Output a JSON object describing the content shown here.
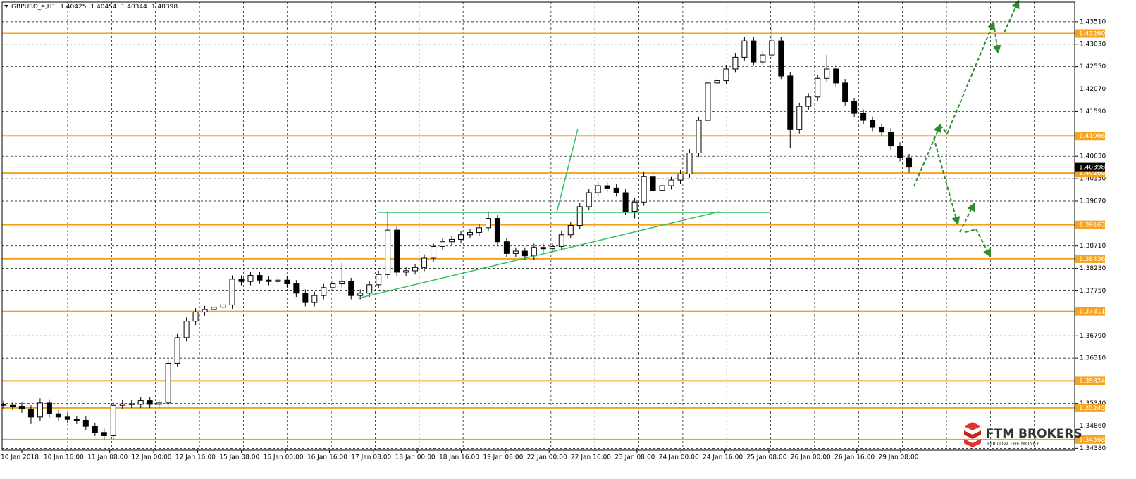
{
  "chart_data": {
    "type": "candlestick",
    "symbol": "GBPUSD_e,H1",
    "header_ohlc": [
      1.40425,
      1.40454,
      1.40344,
      1.40398
    ],
    "ylim": [
      1.3434,
      1.4393
    ],
    "yticks": [
      {
        "value": 1.4351,
        "label": "1.43510"
      },
      {
        "value": 1.4303,
        "label": "1.43030"
      },
      {
        "value": 1.4255,
        "label": "1.42550"
      },
      {
        "value": 1.4207,
        "label": "1.42070"
      },
      {
        "value": 1.4159,
        "label": "1.41590"
      },
      {
        "value": 1.4063,
        "label": "1.40630"
      },
      {
        "value": 1.4015,
        "label": "1.40150"
      },
      {
        "value": 1.3967,
        "label": "1.39670"
      },
      {
        "value": 1.3871,
        "label": "1.38710"
      },
      {
        "value": 1.3823,
        "label": "1.38230"
      },
      {
        "value": 1.3775,
        "label": "1.37750"
      },
      {
        "value": 1.3679,
        "label": "1.36790"
      },
      {
        "value": 1.3631,
        "label": "1.36310"
      },
      {
        "value": 1.3534,
        "label": "1.35340"
      },
      {
        "value": 1.3486,
        "label": "1.34860"
      },
      {
        "value": 1.3438,
        "label": "1.34380"
      }
    ],
    "grid": true,
    "xticks_labels": [
      "10 Jan 2018",
      "10 Jan 16:00",
      "11 Jan 08:00",
      "12 Jan 00:00",
      "12 Jan 16:00",
      "15 Jan 08:00",
      "16 Jan 00:00",
      "16 Jan 16:00",
      "17 Jan 08:00",
      "18 Jan 00:00",
      "18 Jan 16:00",
      "19 Jan 08:00",
      "22 Jan 00:00",
      "22 Jan 16:00",
      "23 Jan 08:00",
      "24 Jan 00:00",
      "24 Jan 16:00",
      "25 Jan 08:00",
      "26 Jan 00:00",
      "26 Jan 16:00",
      "29 Jan 08:00"
    ],
    "levels_color": "#f7a21b",
    "levels": [
      {
        "value": 1.4326,
        "label": "1.43260"
      },
      {
        "value": 1.41066,
        "label": "1.41066"
      },
      {
        "value": 1.40269,
        "label": "1.40269"
      },
      {
        "value": 1.39163,
        "label": "1.39163"
      },
      {
        "value": 1.38436,
        "label": "1.38436"
      },
      {
        "value": 1.37311,
        "label": "1.37311"
      },
      {
        "value": 1.35824,
        "label": "1.35824"
      },
      {
        "value": 1.35245,
        "label": "1.35245"
      },
      {
        "value": 1.34568,
        "label": "1.34568"
      }
    ],
    "current_price": {
      "value": 1.40398,
      "label": "1.40398"
    },
    "candles": [
      [
        1.3532,
        1.354,
        1.3522,
        1.353
      ],
      [
        1.353,
        1.3538,
        1.352,
        1.3528
      ],
      [
        1.3528,
        1.3536,
        1.3514,
        1.3522
      ],
      [
        1.3522,
        1.353,
        1.349,
        1.3505
      ],
      [
        1.3505,
        1.3545,
        1.3497,
        1.3535
      ],
      [
        1.3535,
        1.3543,
        1.3504,
        1.3512
      ],
      [
        1.3512,
        1.352,
        1.3497,
        1.3505
      ],
      [
        1.3505,
        1.3513,
        1.3492,
        1.35
      ],
      [
        1.35,
        1.3508,
        1.349,
        1.3498
      ],
      [
        1.3498,
        1.3506,
        1.3477,
        1.3485
      ],
      [
        1.3485,
        1.3493,
        1.3464,
        1.3472
      ],
      [
        1.3472,
        1.348,
        1.3455,
        1.3465
      ],
      [
        1.3465,
        1.3538,
        1.3457,
        1.353
      ],
      [
        1.353,
        1.3541,
        1.3522,
        1.3533
      ],
      [
        1.3533,
        1.3541,
        1.3524,
        1.3532
      ],
      [
        1.3532,
        1.3548,
        1.3524,
        1.354
      ],
      [
        1.354,
        1.3548,
        1.3524,
        1.3532
      ],
      [
        1.3532,
        1.3543,
        1.3524,
        1.3535
      ],
      [
        1.3535,
        1.3628,
        1.3527,
        1.362
      ],
      [
        1.362,
        1.3683,
        1.3612,
        1.3675
      ],
      [
        1.3675,
        1.3718,
        1.3667,
        1.371
      ],
      [
        1.371,
        1.3738,
        1.3702,
        1.373
      ],
      [
        1.373,
        1.3743,
        1.3722,
        1.3735
      ],
      [
        1.3735,
        1.3748,
        1.3727,
        1.374
      ],
      [
        1.374,
        1.3753,
        1.3732,
        1.3745
      ],
      [
        1.3745,
        1.3808,
        1.3737,
        1.38
      ],
      [
        1.38,
        1.3808,
        1.3787,
        1.3795
      ],
      [
        1.3795,
        1.3816,
        1.3787,
        1.3808
      ],
      [
        1.3808,
        1.3816,
        1.379,
        1.3798
      ],
      [
        1.3798,
        1.3806,
        1.3787,
        1.3795
      ],
      [
        1.3795,
        1.3806,
        1.3787,
        1.3798
      ],
      [
        1.3798,
        1.3806,
        1.3782,
        1.379
      ],
      [
        1.379,
        1.3798,
        1.3762,
        1.377
      ],
      [
        1.377,
        1.3778,
        1.3742,
        1.375
      ],
      [
        1.375,
        1.3773,
        1.3742,
        1.3765
      ],
      [
        1.3765,
        1.379,
        1.3757,
        1.3782
      ],
      [
        1.3782,
        1.3798,
        1.3774,
        1.379
      ],
      [
        1.379,
        1.3835,
        1.3782,
        1.3795
      ],
      [
        1.3795,
        1.3803,
        1.3757,
        1.3765
      ],
      [
        1.3765,
        1.3778,
        1.3757,
        1.377
      ],
      [
        1.377,
        1.3796,
        1.3762,
        1.3788
      ],
      [
        1.3788,
        1.3818,
        1.378,
        1.381
      ],
      [
        1.381,
        1.3945,
        1.3802,
        1.3905
      ],
      [
        1.3905,
        1.3913,
        1.3807,
        1.3815
      ],
      [
        1.3815,
        1.3826,
        1.3807,
        1.3818
      ],
      [
        1.3818,
        1.3833,
        1.381,
        1.3825
      ],
      [
        1.3825,
        1.3853,
        1.3817,
        1.3845
      ],
      [
        1.3845,
        1.3878,
        1.3837,
        1.387
      ],
      [
        1.387,
        1.3888,
        1.3862,
        1.388
      ],
      [
        1.388,
        1.3893,
        1.3872,
        1.3885
      ],
      [
        1.3885,
        1.3903,
        1.3877,
        1.3895
      ],
      [
        1.3895,
        1.3908,
        1.3887,
        1.39
      ],
      [
        1.39,
        1.3918,
        1.3892,
        1.391
      ],
      [
        1.391,
        1.3945,
        1.3902,
        1.393
      ],
      [
        1.393,
        1.3938,
        1.3872,
        1.388
      ],
      [
        1.388,
        1.3888,
        1.3847,
        1.3855
      ],
      [
        1.3855,
        1.3868,
        1.3847,
        1.386
      ],
      [
        1.386,
        1.3868,
        1.3842,
        1.385
      ],
      [
        1.385,
        1.3876,
        1.3842,
        1.3868
      ],
      [
        1.3868,
        1.3876,
        1.3857,
        1.3865
      ],
      [
        1.3865,
        1.3878,
        1.3857,
        1.387
      ],
      [
        1.387,
        1.3903,
        1.3862,
        1.3895
      ],
      [
        1.3895,
        1.3923,
        1.3887,
        1.3915
      ],
      [
        1.3915,
        1.3963,
        1.3907,
        1.3955
      ],
      [
        1.3955,
        1.3993,
        1.3947,
        1.3985
      ],
      [
        1.3985,
        1.4008,
        1.3977,
        1.4
      ],
      [
        1.4,
        1.4008,
        1.3987,
        1.3995
      ],
      [
        1.3995,
        1.4003,
        1.3977,
        1.3985
      ],
      [
        1.3985,
        1.3993,
        1.3937,
        1.3945
      ],
      [
        1.3945,
        1.3973,
        1.393,
        1.3965
      ],
      [
        1.3965,
        1.403,
        1.3957,
        1.402
      ],
      [
        1.402,
        1.4028,
        1.3982,
        1.399
      ],
      [
        1.399,
        1.4008,
        1.3982,
        1.4
      ],
      [
        1.4,
        1.402,
        1.3992,
        1.4012
      ],
      [
        1.4012,
        1.4033,
        1.4004,
        1.4025
      ],
      [
        1.4025,
        1.4078,
        1.4017,
        1.407
      ],
      [
        1.407,
        1.4148,
        1.4062,
        1.414
      ],
      [
        1.414,
        1.4228,
        1.4132,
        1.422
      ],
      [
        1.422,
        1.4233,
        1.4212,
        1.4225
      ],
      [
        1.4225,
        1.4258,
        1.4217,
        1.425
      ],
      [
        1.425,
        1.4283,
        1.4242,
        1.4275
      ],
      [
        1.4275,
        1.4318,
        1.4267,
        1.431
      ],
      [
        1.431,
        1.4318,
        1.4257,
        1.4265
      ],
      [
        1.4265,
        1.4288,
        1.4257,
        1.428
      ],
      [
        1.428,
        1.4345,
        1.4272,
        1.431
      ],
      [
        1.431,
        1.4318,
        1.4227,
        1.4235
      ],
      [
        1.4235,
        1.4243,
        1.408,
        1.412
      ],
      [
        1.412,
        1.4178,
        1.4112,
        1.417
      ],
      [
        1.417,
        1.4198,
        1.4162,
        1.419
      ],
      [
        1.419,
        1.4238,
        1.4182,
        1.423
      ],
      [
        1.423,
        1.428,
        1.4222,
        1.425
      ],
      [
        1.425,
        1.4258,
        1.4212,
        1.422
      ],
      [
        1.422,
        1.4228,
        1.4172,
        1.418
      ],
      [
        1.418,
        1.4188,
        1.4147,
        1.4155
      ],
      [
        1.4155,
        1.4163,
        1.4132,
        1.414
      ],
      [
        1.414,
        1.4148,
        1.4117,
        1.4125
      ],
      [
        1.4125,
        1.4133,
        1.4107,
        1.4115
      ],
      [
        1.4115,
        1.4123,
        1.4077,
        1.4085
      ],
      [
        1.4085,
        1.4093,
        1.4052,
        1.406
      ],
      [
        1.406,
        1.4068,
        1.4028,
        1.40398
      ]
    ],
    "logo": {
      "name": "FTM BROKERS",
      "tagline": "FOLLOW THE MONEY"
    }
  }
}
